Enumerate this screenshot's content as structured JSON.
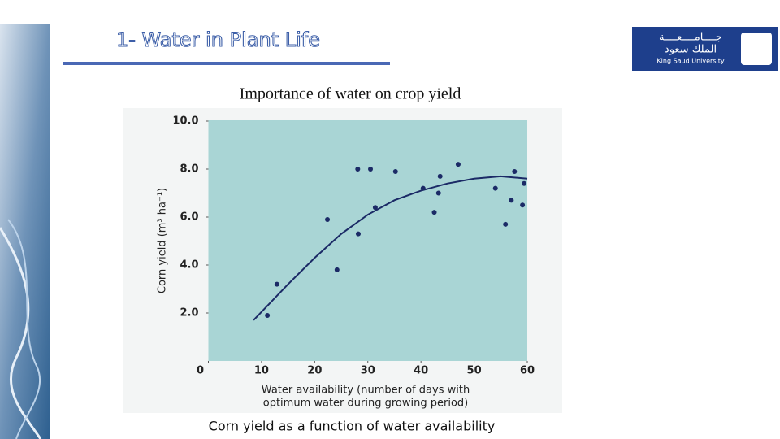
{
  "header": {
    "title": "1- Water in Plant Life"
  },
  "logo": {
    "arabic_top": "جــــامــــعــــة",
    "arabic_bottom": "الملك سعود",
    "english": "King Saud University"
  },
  "subtitle": "Importance of water on crop yield",
  "caption": "Corn yield as a function of water availability",
  "chart_data": {
    "type": "scatter",
    "ylabel": "Corn yield (m³ ha⁻¹)",
    "xlabel": [
      "Water availability (number of days with",
      "optimum water during growing period)"
    ],
    "xlim": [
      0,
      60
    ],
    "ylim": [
      0,
      10
    ],
    "xticks": [
      0,
      10,
      20,
      30,
      40,
      50,
      60
    ],
    "yticks": [
      {
        "value": 2,
        "label": "2.0"
      },
      {
        "value": 4,
        "label": "4.0"
      },
      {
        "value": 6,
        "label": "6.0"
      },
      {
        "value": 8,
        "label": "8.0"
      },
      {
        "value": 10,
        "label": "10.0"
      }
    ],
    "plot_color": "#a9d5d5",
    "series": [
      {
        "style": "markers",
        "color": "#1b2a66",
        "x": [
          11.1,
          12.9,
          22.4,
          24.2,
          28.1,
          28.2,
          30.5,
          31.4,
          35.2,
          40.4,
          42.5,
          43.3,
          43.6,
          47.0,
          54.0,
          55.9,
          57.0,
          57.6,
          59.1,
          59.4
        ],
        "values": [
          1.9,
          3.2,
          5.9,
          3.8,
          8.0,
          5.3,
          8.0,
          6.4,
          7.9,
          7.2,
          6.2,
          7.0,
          7.7,
          8.2,
          7.2,
          5.7,
          6.7,
          7.9,
          6.5,
          7.4
        ]
      },
      {
        "style": "line",
        "color": "#1b2a66",
        "x": [
          8.5,
          15,
          20,
          25,
          30,
          35,
          40,
          45,
          50,
          55,
          60
        ],
        "values": [
          1.7,
          3.2,
          4.3,
          5.3,
          6.1,
          6.7,
          7.1,
          7.4,
          7.6,
          7.7,
          7.6
        ]
      }
    ]
  }
}
